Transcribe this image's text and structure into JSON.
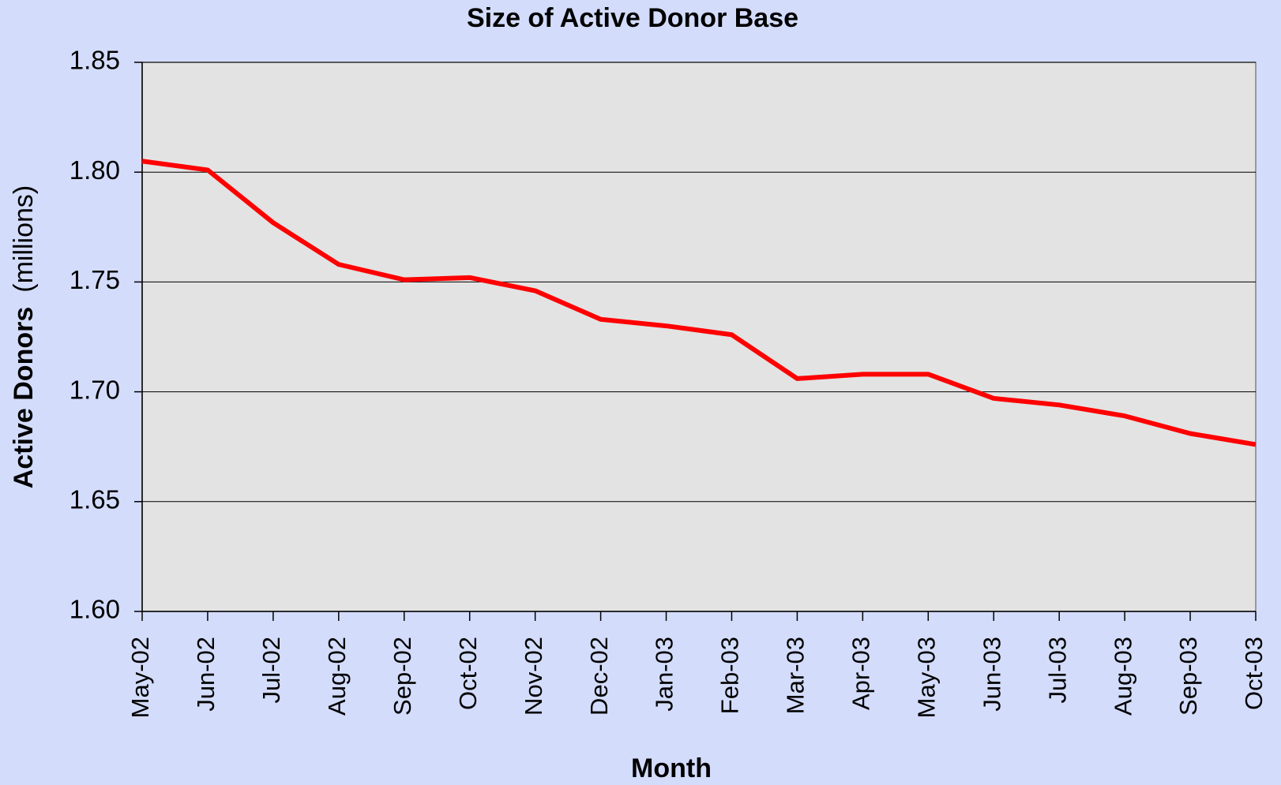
{
  "chart_data": {
    "type": "line",
    "title": "Size of Active Donor Base",
    "x_label": "Month",
    "y_label": "Active Donors",
    "y_label_unit": "(millions)",
    "categories": [
      "May-02",
      "Jun-02",
      "Jul-02",
      "Aug-02",
      "Sep-02",
      "Oct-02",
      "Nov-02",
      "Dec-02",
      "Jan-03",
      "Feb-03",
      "Mar-03",
      "Apr-03",
      "May-03",
      "Jun-03",
      "Jul-03",
      "Aug-03",
      "Sep-03",
      "Oct-03"
    ],
    "series": [
      {
        "name": "Active Donors",
        "color": "#ff0000",
        "values": [
          1.805,
          1.801,
          1.777,
          1.758,
          1.751,
          1.752,
          1.746,
          1.733,
          1.73,
          1.726,
          1.706,
          1.708,
          1.708,
          1.697,
          1.694,
          1.689,
          1.681,
          1.676
        ]
      }
    ],
    "ylim": [
      1.6,
      1.85
    ],
    "yticks": [
      {
        "value": 1.6,
        "label": "1.60"
      },
      1.65,
      {
        "value": 1.7,
        "label": "1.70"
      },
      1.75,
      {
        "value": 1.8,
        "label": "1.80"
      },
      1.85
    ],
    "grid": true
  }
}
